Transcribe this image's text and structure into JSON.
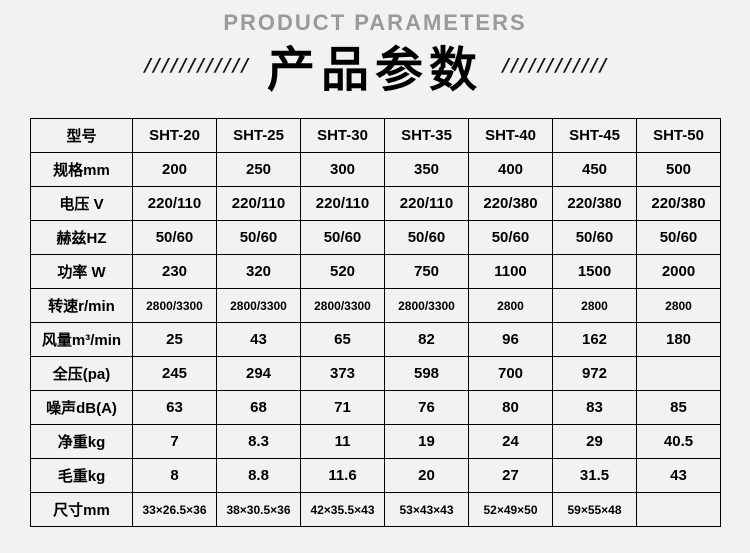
{
  "header": {
    "subtitle": "PRODUCT PARAMETERS",
    "title": "产品参数",
    "hatch": "////////////"
  },
  "table": {
    "row_labels": [
      "型号",
      "规格mm",
      "电压 V",
      "赫兹HZ",
      "功率 W",
      "转速r/min",
      "风量m³/min",
      "全压(pa)",
      "噪声dB(A)",
      "净重kg",
      "毛重kg",
      "尺寸mm"
    ],
    "columns": [
      "SHT-20",
      "SHT-25",
      "SHT-30",
      "SHT-35",
      "SHT-40",
      "SHT-45",
      "SHT-50"
    ],
    "rows": [
      [
        "200",
        "250",
        "300",
        "350",
        "400",
        "450",
        "500"
      ],
      [
        "220/110",
        "220/110",
        "220/110",
        "220/110",
        "220/380",
        "220/380",
        "220/380"
      ],
      [
        "50/60",
        "50/60",
        "50/60",
        "50/60",
        "50/60",
        "50/60",
        "50/60"
      ],
      [
        "230",
        "320",
        "520",
        "750",
        "1100",
        "1500",
        "2000"
      ],
      [
        "2800/3300",
        "2800/3300",
        "2800/3300",
        "2800/3300",
        "2800",
        "2800",
        "2800"
      ],
      [
        "25",
        "43",
        "65",
        "82",
        "96",
        "162",
        "180"
      ],
      [
        "245",
        "294",
        "373",
        "598",
        "700",
        "972",
        ""
      ],
      [
        "63",
        "68",
        "71",
        "76",
        "80",
        "83",
        "85"
      ],
      [
        "7",
        "8.3",
        "11",
        "19",
        "24",
        "29",
        "40.5"
      ],
      [
        "8",
        "8.8",
        "11.6",
        "20",
        "27",
        "31.5",
        "43"
      ],
      [
        "33×26.5×36",
        "38×30.5×36",
        "42×35.5×43",
        "53×43×43",
        "52×49×50",
        "59×55×48",
        ""
      ]
    ],
    "small_rows": [
      4,
      10
    ],
    "colors": {
      "background": "#f2f2f2",
      "border": "#000000",
      "text": "#000000",
      "subtitle": "#9a9a9a"
    },
    "fonts": {
      "cell_fontsize": 15,
      "small_cell_fontsize": 12,
      "title_fontsize": 48,
      "subtitle_fontsize": 22
    }
  }
}
